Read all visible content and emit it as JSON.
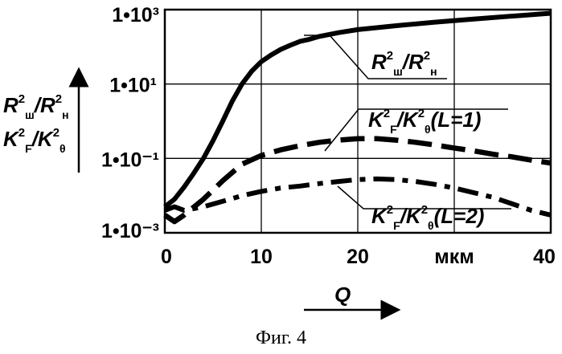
{
  "chart_data": {
    "type": "line",
    "y_scale": "log",
    "x_tick_labels": [
      "0",
      "10",
      "20",
      "мкм",
      "40"
    ],
    "y_tick_labels": [
      "1•10³",
      "1•10¹",
      "1•10⁻¹",
      "1•10⁻³"
    ],
    "xlim": [
      0,
      40
    ],
    "ylim": [
      0.001,
      1000
    ],
    "grid": true,
    "xlabel": "Q",
    "ylabel": "R²ш/R²н  K²F/K²θ",
    "series": [
      {
        "name": "R²ш/R²н",
        "style": "solid",
        "x": [
          0,
          1,
          2,
          3,
          4,
          5,
          6,
          7,
          8,
          9,
          10,
          11,
          12,
          13,
          14,
          15,
          16,
          18,
          20,
          24,
          28,
          32,
          36,
          40
        ],
        "y": [
          0.005,
          0.008,
          0.017,
          0.04,
          0.1,
          0.3,
          1.0,
          3.5,
          10,
          22,
          40,
          60,
          85,
          110,
          140,
          160,
          190,
          240,
          290,
          370,
          460,
          560,
          670,
          800
        ]
      },
      {
        "name": "K²F/K²θ(L=1)",
        "style": "dashed",
        "x": [
          0,
          1,
          2,
          4,
          6,
          8,
          10,
          12,
          14,
          16,
          18,
          20,
          22,
          24,
          26,
          28,
          30,
          32,
          34,
          36,
          38,
          40
        ],
        "y": [
          0.003,
          0.002,
          0.003,
          0.008,
          0.025,
          0.07,
          0.12,
          0.17,
          0.22,
          0.27,
          0.31,
          0.34,
          0.34,
          0.31,
          0.27,
          0.23,
          0.19,
          0.16,
          0.13,
          0.11,
          0.09,
          0.075
        ]
      },
      {
        "name": "K²F/K²θ(L=2)",
        "style": "dash-dot",
        "x": [
          0,
          1,
          2,
          4,
          6,
          8,
          10,
          12,
          14,
          16,
          18,
          20,
          22,
          24,
          26,
          28,
          30,
          32,
          34,
          36,
          38,
          40
        ],
        "y": [
          0.004,
          0.005,
          0.004,
          0.005,
          0.007,
          0.01,
          0.013,
          0.016,
          0.018,
          0.021,
          0.024,
          0.027,
          0.028,
          0.027,
          0.024,
          0.02,
          0.016,
          0.012,
          0.009,
          0.006,
          0.004,
          0.003
        ]
      }
    ],
    "curve_labels": [
      {
        "main": "R",
        "sup1": "2",
        "sub1": "ш",
        "sep": "/R",
        "sup2": "2",
        "sub2": "н"
      },
      {
        "main": "K",
        "sup1": "2",
        "sub1": "F",
        "sep": "/K",
        "sup2": "2",
        "sub2": "θ",
        "tail": "(L=1)"
      },
      {
        "main": "K",
        "sup1": "2",
        "sub1": "F",
        "sep": "/K",
        "sup2": "2",
        "sub2": "θ",
        "tail": "(L=2)"
      }
    ],
    "y_axis_label_lines": [
      {
        "main": "R",
        "sup1": "2",
        "sub1": "ш",
        "sep": "/R",
        "sup2": "2",
        "sub2": "н"
      },
      {
        "main": "K",
        "sup1": "2",
        "sub1": "F",
        "sep": "/K",
        "sup2": "2",
        "sub2": "θ"
      }
    ]
  },
  "caption": "Фиг. 4"
}
